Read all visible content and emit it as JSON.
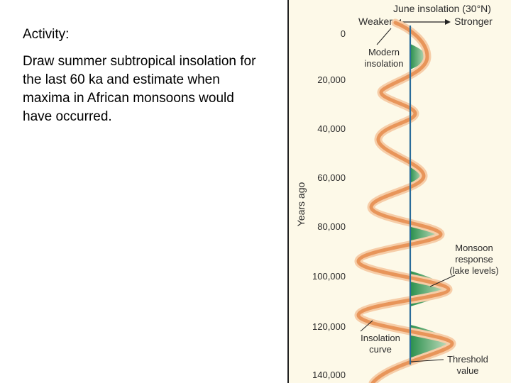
{
  "activity": {
    "title": "Activity:",
    "body": "Draw summer subtropical insolation for the last 60 ka and estimate when maxima in African monsoons would have occurred."
  },
  "figure": {
    "title": "June insolation (30°N)",
    "weaker_label": "Weaker",
    "stronger_label": "Stronger",
    "y_axis_label": "Years ago",
    "y_ticks": [
      "0",
      "20,000",
      "40,000",
      "60,000",
      "80,000",
      "100,000",
      "120,000",
      "140,000"
    ],
    "annotations": {
      "modern_insolation": [
        "Modern",
        "insolation"
      ],
      "monsoon_response": [
        "Monsoon",
        "response",
        "(lake levels)"
      ],
      "insolation_curve": [
        "Insolation",
        "curve"
      ],
      "threshold_value": [
        "Threshold",
        "value"
      ]
    },
    "colors": {
      "background": "#fdf9e8",
      "curve": "#e8955a",
      "curve_light": "#f6cda8",
      "threshold": "#2a6c9a",
      "monsoon": "#1e8a45"
    }
  }
}
